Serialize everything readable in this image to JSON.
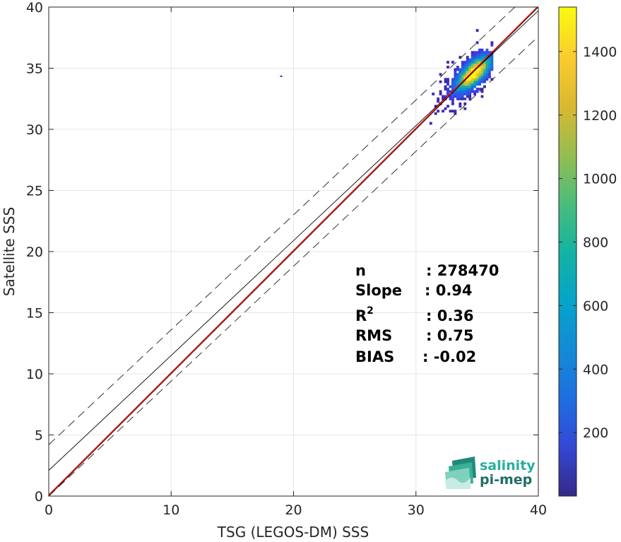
{
  "chart_data": {
    "type": "heatmap",
    "xlabel": "TSG (LEGOS-DM) SSS",
    "ylabel": "Satellite SSS",
    "xlim": [
      0,
      40
    ],
    "ylim": [
      0,
      40
    ],
    "xticks": [
      "0",
      "10",
      "20",
      "30",
      "40"
    ],
    "yticks": [
      "0",
      "5",
      "10",
      "15",
      "20",
      "25",
      "30",
      "35",
      "40"
    ],
    "grid": true,
    "colorbar": {
      "min": 0,
      "max": 1540,
      "ticks": [
        "200",
        "400",
        "600",
        "800",
        "1000",
        "1200",
        "1400"
      ],
      "colormap": "parula"
    },
    "density": {
      "peak_x": 34.6,
      "peak_y": 34.5,
      "x_range": [
        28.5,
        36.3
      ],
      "y_range": [
        27.2,
        39.0
      ],
      "outlier": [
        18.9,
        34.4
      ]
    },
    "lines": {
      "identity": {
        "slope": 1,
        "intercept": 0,
        "color": "#000000"
      },
      "fit": {
        "slope": 0.94,
        "intercept": 2.1,
        "color": "#000000"
      },
      "fit_upper": {
        "slope": 0.94,
        "intercept": 4.2,
        "style": "dashed"
      },
      "fit_lower": {
        "slope": 0.94,
        "intercept": 0.0,
        "style": "dashed"
      },
      "red": {
        "slope": 1,
        "intercept": 0.1,
        "color": "#ff0000"
      }
    },
    "stats": [
      {
        "label": "n",
        "value": ": 278470"
      },
      {
        "label": "Slope",
        "value": ": 0.94"
      },
      {
        "label": "R",
        "sup": "2",
        "value": ": 0.36"
      },
      {
        "label": "RMS",
        "value": ": 0.75"
      },
      {
        "label": "BIAS",
        "value": ": -0.02"
      }
    ]
  },
  "logo": {
    "line1": "salinity",
    "line2": "pi-mep",
    "color1": "#28b09a",
    "color2": "#1f6e66"
  }
}
